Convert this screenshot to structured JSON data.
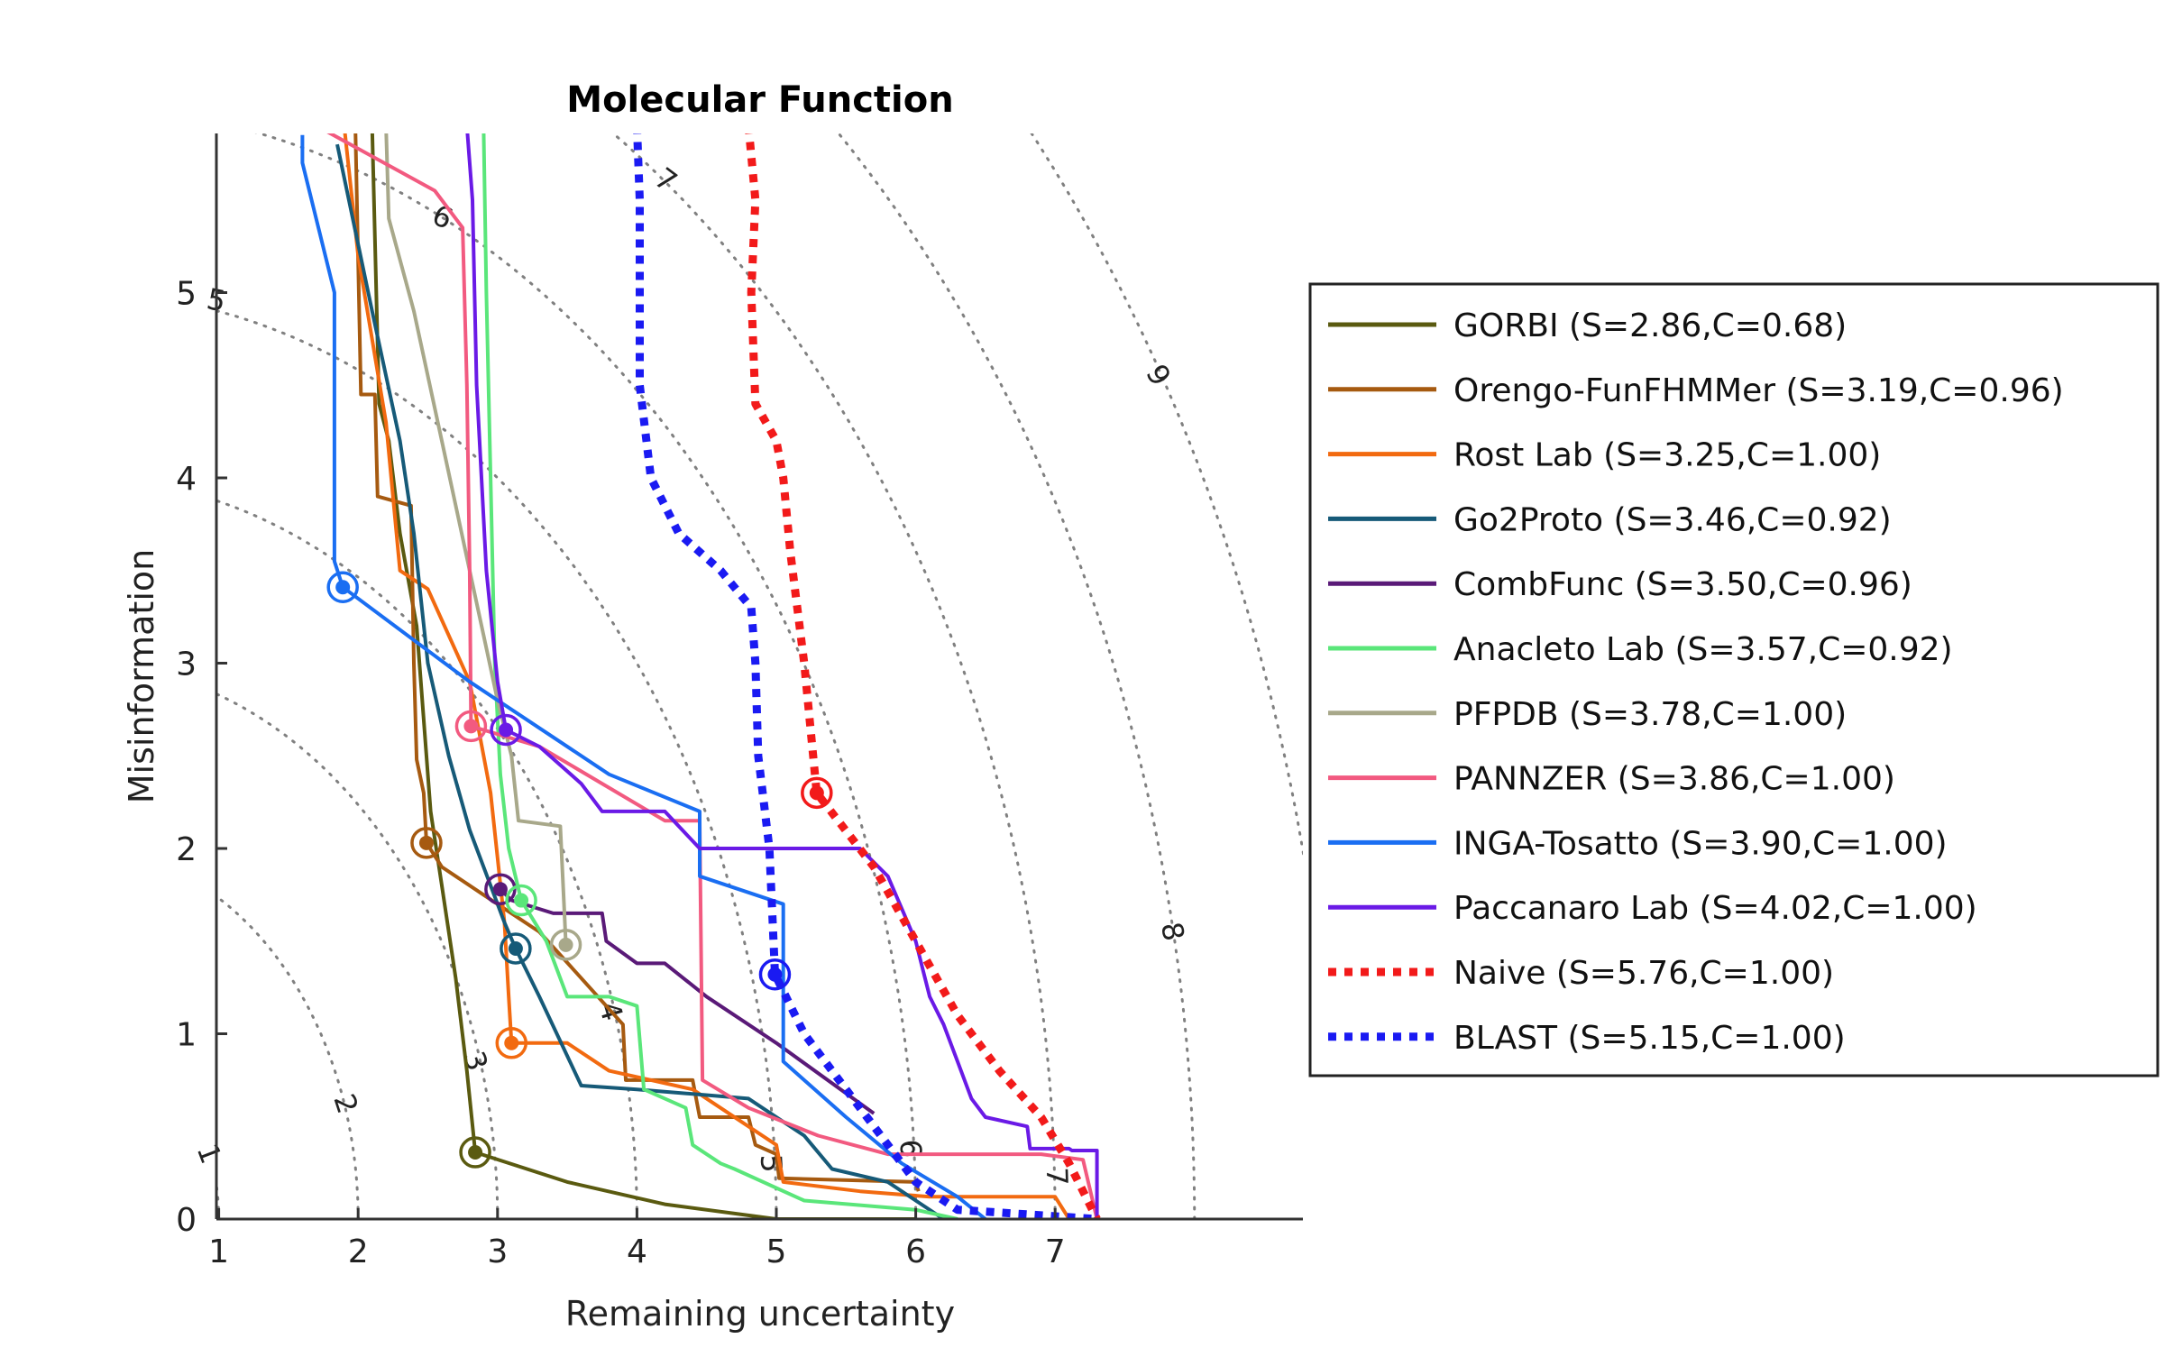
{
  "chart_data": {
    "type": "line",
    "title": "Molecular Function",
    "xlabel": "Remaining uncertainty",
    "ylabel": "Misinformation",
    "xlim": [
      0.2,
      8.0
    ],
    "ylim": [
      0,
      5.85
    ],
    "xticks": [
      1,
      2,
      3,
      4,
      5,
      6,
      7
    ],
    "yticks": [
      0,
      1,
      2,
      3,
      4,
      5
    ],
    "grid": false,
    "legend_position": "right",
    "contours": {
      "levels": [
        1,
        2,
        3,
        4,
        5,
        6,
        7,
        8,
        9
      ],
      "label_positions": [
        {
          "label": "1",
          "x": 0.92,
          "y": 0.35
        },
        {
          "label": "2",
          "x": 1.9,
          "y": 0.62
        },
        {
          "label": "3",
          "x": 2.83,
          "y": 0.85
        },
        {
          "label": "4",
          "x": 3.8,
          "y": 1.12
        },
        {
          "label": "5",
          "x": 4.95,
          "y": 0.3
        },
        {
          "label": "6",
          "x": 5.95,
          "y": 0.38
        },
        {
          "label": "7",
          "x": 7.0,
          "y": 0.23
        },
        {
          "label": "8",
          "x": 7.83,
          "y": 1.55
        },
        {
          "label": "9",
          "x": 7.73,
          "y": 4.55
        },
        {
          "label": "5",
          "x": 0.98,
          "y": 4.95
        },
        {
          "label": "6",
          "x": 2.6,
          "y": 5.4
        },
        {
          "label": "7",
          "x": 4.2,
          "y": 5.6
        }
      ]
    },
    "series": [
      {
        "name": "GORBI (S=2.86,C=0.68)",
        "color": "#5a5a10",
        "style": "solid",
        "marker": [
          2.84,
          0.36
        ],
        "points": [
          [
            2.1,
            5.9
          ],
          [
            2.15,
            4.4
          ],
          [
            2.22,
            4.2
          ],
          [
            2.3,
            3.7
          ],
          [
            2.42,
            3.2
          ],
          [
            2.52,
            2.2
          ],
          [
            2.6,
            1.8
          ],
          [
            2.7,
            1.3
          ],
          [
            2.78,
            0.8
          ],
          [
            2.84,
            0.36
          ],
          [
            3.5,
            0.2
          ],
          [
            4.2,
            0.08
          ],
          [
            5.0,
            0.0
          ],
          [
            6.0,
            0.0
          ]
        ]
      },
      {
        "name": "Orengo-FunFHMMer (S=3.19,C=0.96)",
        "color": "#a65a10",
        "style": "solid",
        "marker": [
          2.49,
          2.03
        ],
        "points": [
          [
            1.98,
            5.9
          ],
          [
            2.02,
            4.45
          ],
          [
            2.12,
            4.45
          ],
          [
            2.14,
            3.9
          ],
          [
            2.38,
            3.85
          ],
          [
            2.4,
            3.0
          ],
          [
            2.42,
            2.48
          ],
          [
            2.47,
            2.3
          ],
          [
            2.49,
            2.03
          ],
          [
            2.6,
            1.9
          ],
          [
            2.9,
            1.75
          ],
          [
            3.3,
            1.55
          ],
          [
            3.6,
            1.3
          ],
          [
            3.9,
            1.05
          ],
          [
            3.92,
            0.75
          ],
          [
            4.4,
            0.75
          ],
          [
            4.45,
            0.55
          ],
          [
            4.8,
            0.55
          ],
          [
            4.85,
            0.4
          ],
          [
            5.0,
            0.35
          ],
          [
            5.02,
            0.22
          ],
          [
            6.0,
            0.2
          ],
          [
            6.02,
            0.15
          ]
        ]
      },
      {
        "name": "Rost Lab (S=3.25,C=1.00)",
        "color": "#f26a10",
        "style": "solid",
        "marker": [
          3.1,
          0.95
        ],
        "points": [
          [
            1.9,
            5.9
          ],
          [
            2.0,
            5.2
          ],
          [
            2.2,
            4.3
          ],
          [
            2.3,
            3.5
          ],
          [
            2.5,
            3.4
          ],
          [
            2.8,
            2.9
          ],
          [
            2.95,
            2.3
          ],
          [
            3.05,
            1.6
          ],
          [
            3.08,
            1.2
          ],
          [
            3.1,
            0.95
          ],
          [
            3.5,
            0.95
          ],
          [
            3.8,
            0.8
          ],
          [
            4.4,
            0.7
          ],
          [
            5.0,
            0.4
          ],
          [
            5.05,
            0.2
          ],
          [
            5.6,
            0.15
          ],
          [
            6.1,
            0.12
          ],
          [
            7.0,
            0.12
          ],
          [
            7.1,
            0.0
          ]
        ]
      },
      {
        "name": "Go2Proto (S=3.46,C=0.92)",
        "color": "#165a78",
        "style": "solid",
        "marker": [
          3.13,
          1.46
        ],
        "points": [
          [
            1.85,
            5.8
          ],
          [
            2.1,
            4.9
          ],
          [
            2.3,
            4.2
          ],
          [
            2.4,
            3.7
          ],
          [
            2.5,
            3.0
          ],
          [
            2.65,
            2.5
          ],
          [
            2.8,
            2.1
          ],
          [
            2.95,
            1.8
          ],
          [
            3.05,
            1.6
          ],
          [
            3.13,
            1.46
          ],
          [
            3.3,
            1.2
          ],
          [
            3.6,
            0.72
          ],
          [
            4.0,
            0.7
          ],
          [
            4.8,
            0.65
          ],
          [
            5.2,
            0.45
          ],
          [
            5.4,
            0.27
          ],
          [
            5.8,
            0.2
          ],
          [
            6.0,
            0.1
          ],
          [
            6.2,
            0.0
          ]
        ]
      },
      {
        "name": "CombFunc (S=3.50,C=0.96)",
        "color": "#5a1a78",
        "style": "solid",
        "marker": [
          3.02,
          1.78
        ],
        "points": [
          [
            3.02,
            1.78
          ],
          [
            3.1,
            1.72
          ],
          [
            3.4,
            1.65
          ],
          [
            3.75,
            1.65
          ],
          [
            3.78,
            1.5
          ],
          [
            4.0,
            1.38
          ],
          [
            4.2,
            1.38
          ],
          [
            4.5,
            1.2
          ],
          [
            5.0,
            0.95
          ],
          [
            5.7,
            0.57
          ]
        ]
      },
      {
        "name": "Anacleto Lab (S=3.57,C=0.92)",
        "color": "#5ae67a",
        "style": "solid",
        "marker": [
          3.17,
          1.72
        ],
        "points": [
          [
            2.9,
            5.9
          ],
          [
            2.92,
            5.0
          ],
          [
            2.95,
            4.0
          ],
          [
            2.98,
            3.0
          ],
          [
            3.02,
            2.4
          ],
          [
            3.08,
            2.0
          ],
          [
            3.17,
            1.72
          ],
          [
            3.35,
            1.5
          ],
          [
            3.5,
            1.2
          ],
          [
            3.8,
            1.2
          ],
          [
            4.0,
            1.15
          ],
          [
            4.05,
            0.7
          ],
          [
            4.35,
            0.6
          ],
          [
            4.4,
            0.4
          ],
          [
            4.6,
            0.3
          ],
          [
            4.7,
            0.27
          ],
          [
            5.2,
            0.1
          ],
          [
            6.0,
            0.05
          ],
          [
            6.3,
            0.0
          ]
        ]
      },
      {
        "name": "PFPDB (S=3.78,C=1.00)",
        "color": "#a8a88a",
        "style": "solid",
        "marker": [
          3.49,
          1.48
        ],
        "points": [
          [
            2.2,
            5.9
          ],
          [
            2.22,
            5.4
          ],
          [
            2.4,
            4.9
          ],
          [
            2.6,
            4.2
          ],
          [
            2.8,
            3.5
          ],
          [
            3.0,
            2.8
          ],
          [
            3.1,
            2.5
          ],
          [
            3.15,
            2.15
          ],
          [
            3.45,
            2.12
          ],
          [
            3.48,
            1.65
          ],
          [
            3.49,
            1.48
          ]
        ]
      },
      {
        "name": "PANNZER (S=3.86,C=1.00)",
        "color": "#f25a80",
        "style": "solid",
        "marker": [
          2.81,
          2.66
        ],
        "points": [
          [
            1.75,
            5.88
          ],
          [
            2.55,
            5.55
          ],
          [
            2.75,
            5.35
          ],
          [
            2.78,
            4.5
          ],
          [
            2.8,
            3.5
          ],
          [
            2.81,
            2.66
          ],
          [
            3.3,
            2.55
          ],
          [
            4.2,
            2.15
          ],
          [
            4.45,
            2.15
          ],
          [
            4.47,
            0.75
          ],
          [
            4.8,
            0.6
          ],
          [
            5.3,
            0.45
          ],
          [
            5.8,
            0.35
          ],
          [
            6.3,
            0.35
          ],
          [
            6.9,
            0.35
          ],
          [
            7.2,
            0.32
          ],
          [
            7.3,
            0.0
          ]
        ]
      },
      {
        "name": "INGA-Tosatto (S=3.90,C=1.00)",
        "color": "#1a6ef2",
        "style": "solid",
        "marker": [
          1.89,
          3.41
        ],
        "points": [
          [
            1.6,
            5.85
          ],
          [
            1.6,
            5.7
          ],
          [
            1.83,
            5.0
          ],
          [
            1.83,
            3.55
          ],
          [
            1.89,
            3.41
          ],
          [
            2.8,
            2.9
          ],
          [
            3.8,
            2.4
          ],
          [
            4.45,
            2.2
          ],
          [
            4.45,
            1.85
          ],
          [
            5.05,
            1.7
          ],
          [
            5.05,
            0.85
          ],
          [
            5.5,
            0.55
          ],
          [
            5.9,
            0.3
          ],
          [
            6.3,
            0.12
          ],
          [
            6.5,
            0.0
          ]
        ]
      },
      {
        "name": "Paccanaro Lab (S=4.02,C=1.00)",
        "color": "#6a1ae6",
        "style": "solid",
        "marker": [
          3.06,
          2.64
        ],
        "points": [
          [
            2.78,
            5.9
          ],
          [
            2.82,
            5.5
          ],
          [
            2.85,
            4.5
          ],
          [
            2.92,
            3.5
          ],
          [
            3.0,
            2.9
          ],
          [
            3.06,
            2.64
          ],
          [
            3.3,
            2.55
          ],
          [
            3.6,
            2.35
          ],
          [
            3.75,
            2.2
          ],
          [
            4.2,
            2.2
          ],
          [
            4.45,
            2.0
          ],
          [
            5.6,
            2.0
          ],
          [
            5.8,
            1.85
          ],
          [
            6.0,
            1.5
          ],
          [
            6.05,
            1.35
          ],
          [
            6.1,
            1.2
          ],
          [
            6.2,
            1.05
          ],
          [
            6.3,
            0.85
          ],
          [
            6.4,
            0.65
          ],
          [
            6.5,
            0.55
          ],
          [
            6.8,
            0.5
          ],
          [
            6.82,
            0.38
          ],
          [
            7.1,
            0.38
          ],
          [
            7.12,
            0.37
          ],
          [
            7.3,
            0.37
          ],
          [
            7.3,
            0.0
          ]
        ]
      },
      {
        "name": "Naive (S=5.76,C=1.00)",
        "color": "#f21a1a",
        "style": "dotted",
        "marker": [
          5.29,
          2.3
        ],
        "points": [
          [
            4.8,
            5.9
          ],
          [
            4.85,
            5.5
          ],
          [
            4.82,
            5.0
          ],
          [
            4.85,
            4.4
          ],
          [
            5.0,
            4.2
          ],
          [
            5.05,
            4.0
          ],
          [
            5.1,
            3.6
          ],
          [
            5.2,
            3.0
          ],
          [
            5.29,
            2.3
          ],
          [
            5.7,
            1.9
          ],
          [
            6.0,
            1.5
          ],
          [
            6.3,
            1.1
          ],
          [
            6.6,
            0.8
          ],
          [
            6.9,
            0.55
          ],
          [
            7.1,
            0.3
          ],
          [
            7.3,
            0.0
          ]
        ]
      },
      {
        "name": "BLAST (S=5.15,C=1.00)",
        "color": "#1a1af2",
        "style": "dotted",
        "marker": [
          4.99,
          1.32
        ],
        "points": [
          [
            4.0,
            5.9
          ],
          [
            4.02,
            5.5
          ],
          [
            4.02,
            4.5
          ],
          [
            4.1,
            4.0
          ],
          [
            4.3,
            3.7
          ],
          [
            4.6,
            3.5
          ],
          [
            4.82,
            3.3
          ],
          [
            4.85,
            3.0
          ],
          [
            4.87,
            2.5
          ],
          [
            4.95,
            2.0
          ],
          [
            4.99,
            1.32
          ],
          [
            5.2,
            1.0
          ],
          [
            5.5,
            0.7
          ],
          [
            5.8,
            0.4
          ],
          [
            6.0,
            0.2
          ],
          [
            6.3,
            0.05
          ],
          [
            7.3,
            0.0
          ]
        ]
      }
    ]
  }
}
